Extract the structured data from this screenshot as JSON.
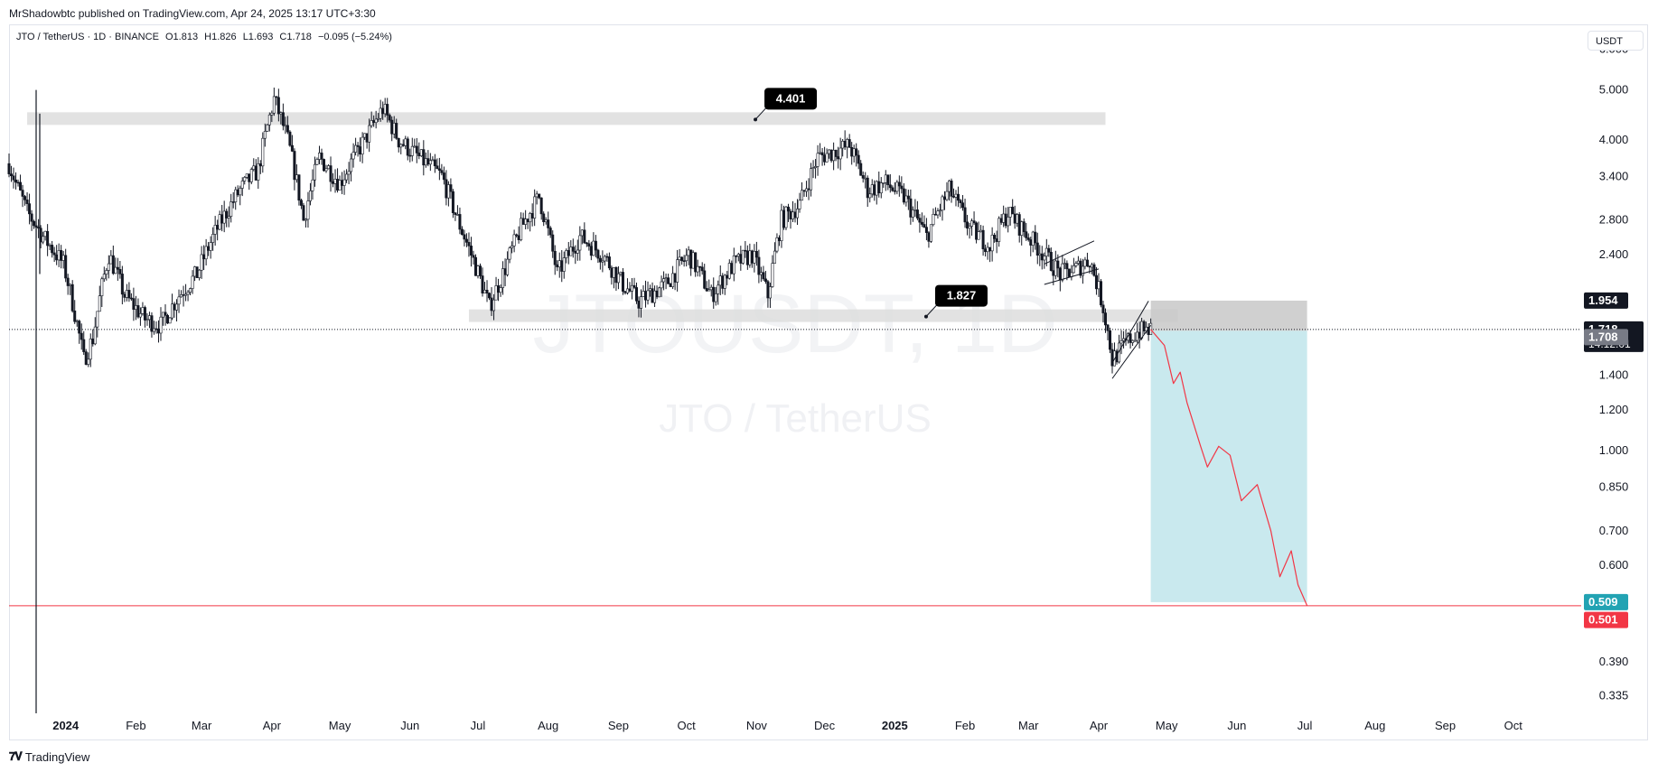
{
  "header": {
    "published": "MrShadowbtc published on TradingView.com, Apr 24, 2025 13:17 UTC+3:30"
  },
  "legend": {
    "symbol": "JTO / TetherUS · 1D · BINANCE",
    "open": "O1.813",
    "high": "H1.826",
    "low": "L1.693",
    "close": "C1.718",
    "change": "−0.095 (−5.24%)"
  },
  "currency": "USDT",
  "watermark": {
    "line1": "JTOUSDT, 1D",
    "line2": "JTO / TetherUS"
  },
  "footer": {
    "brand": "TradingView"
  },
  "colors": {
    "up_down": "#131722",
    "projection": "#f23645",
    "target_box": "#c9e9ee",
    "zone": "#dddddd",
    "last_price": "#131722",
    "teal": "#089981",
    "red": "#f23645"
  },
  "chart_data": {
    "type": "candlestick",
    "y_scale": "log",
    "ylim": [
      0.31,
      6.7
    ],
    "x_range": [
      "2023-12-07",
      "2025-10-31"
    ],
    "y_ticks": [
      6.0,
      5.0,
      4.0,
      3.4,
      2.8,
      2.4,
      1.4,
      1.2,
      1.0,
      0.85,
      0.7,
      0.6,
      0.39,
      0.335
    ],
    "y_tick_labels": [
      "6.000",
      "5.000",
      "4.000",
      "3.400",
      "2.800",
      "2.400",
      "1.400",
      "1.200",
      "1.000",
      "0.850",
      "0.700",
      "0.600",
      "0.390",
      "0.335"
    ],
    "x_ticks": [
      {
        "date": "2024-01-01",
        "label": "2024",
        "bold": true
      },
      {
        "date": "2024-02-01",
        "label": "Feb"
      },
      {
        "date": "2024-03-01",
        "label": "Mar"
      },
      {
        "date": "2024-04-01",
        "label": "Apr"
      },
      {
        "date": "2024-05-01",
        "label": "May"
      },
      {
        "date": "2024-06-01",
        "label": "Jun"
      },
      {
        "date": "2024-07-01",
        "label": "Jul"
      },
      {
        "date": "2024-08-01",
        "label": "Aug"
      },
      {
        "date": "2024-09-01",
        "label": "Sep"
      },
      {
        "date": "2024-10-01",
        "label": "Oct"
      },
      {
        "date": "2024-11-01",
        "label": "Nov"
      },
      {
        "date": "2024-12-01",
        "label": "Dec"
      },
      {
        "date": "2025-01-01",
        "label": "2025",
        "bold": true
      },
      {
        "date": "2025-02-01",
        "label": "Feb"
      },
      {
        "date": "2025-03-01",
        "label": "Mar"
      },
      {
        "date": "2025-04-01",
        "label": "Apr"
      },
      {
        "date": "2025-05-01",
        "label": "May"
      },
      {
        "date": "2025-06-01",
        "label": "Jun"
      },
      {
        "date": "2025-07-01",
        "label": "Jul"
      },
      {
        "date": "2025-08-01",
        "label": "Aug"
      },
      {
        "date": "2025-09-01",
        "label": "Sep"
      },
      {
        "date": "2025-10-01",
        "label": "Oct"
      }
    ],
    "price_path": [
      [
        "2023-12-07",
        3.6
      ],
      [
        "2023-12-10",
        3.3
      ],
      [
        "2023-12-15",
        2.9
      ],
      [
        "2023-12-22",
        2.6
      ],
      [
        "2023-12-31",
        2.3
      ],
      [
        "2024-01-05",
        1.85
      ],
      [
        "2024-01-09",
        1.5
      ],
      [
        "2024-01-13",
        1.65
      ],
      [
        "2024-01-20",
        2.4
      ],
      [
        "2024-01-27",
        2.0
      ],
      [
        "2024-02-05",
        1.8
      ],
      [
        "2024-02-12",
        1.75
      ],
      [
        "2024-02-20",
        2.0
      ],
      [
        "2024-02-28",
        2.2
      ],
      [
        "2024-03-08",
        2.7
      ],
      [
        "2024-03-18",
        3.2
      ],
      [
        "2024-03-26",
        3.5
      ],
      [
        "2024-04-02",
        4.8
      ],
      [
        "2024-04-08",
        4.0
      ],
      [
        "2024-04-15",
        2.8
      ],
      [
        "2024-04-22",
        3.7
      ],
      [
        "2024-05-01",
        3.3
      ],
      [
        "2024-05-12",
        4.0
      ],
      [
        "2024-05-20",
        4.6
      ],
      [
        "2024-05-27",
        4.0
      ],
      [
        "2024-06-05",
        3.7
      ],
      [
        "2024-06-15",
        3.4
      ],
      [
        "2024-06-22",
        2.8
      ],
      [
        "2024-06-28",
        2.4
      ],
      [
        "2024-07-06",
        1.9
      ],
      [
        "2024-07-12",
        2.2
      ],
      [
        "2024-07-20",
        2.7
      ],
      [
        "2024-07-28",
        3.1
      ],
      [
        "2024-08-05",
        2.2
      ],
      [
        "2024-08-15",
        2.6
      ],
      [
        "2024-08-25",
        2.4
      ],
      [
        "2024-09-03",
        2.1
      ],
      [
        "2024-09-10",
        1.95
      ],
      [
        "2024-09-22",
        2.1
      ],
      [
        "2024-10-02",
        2.4
      ],
      [
        "2024-10-12",
        2.0
      ],
      [
        "2024-10-22",
        2.3
      ],
      [
        "2024-10-30",
        2.4
      ],
      [
        "2024-11-06",
        2.0
      ],
      [
        "2024-11-12",
        2.8
      ],
      [
        "2024-11-20",
        3.0
      ],
      [
        "2024-11-28",
        3.7
      ],
      [
        "2024-12-05",
        3.8
      ],
      [
        "2024-12-12",
        3.9
      ],
      [
        "2024-12-20",
        3.2
      ],
      [
        "2024-12-28",
        3.3
      ],
      [
        "2025-01-05",
        3.1
      ],
      [
        "2025-01-15",
        2.6
      ],
      [
        "2025-01-25",
        3.2
      ],
      [
        "2025-02-03",
        2.7
      ],
      [
        "2025-02-12",
        2.5
      ],
      [
        "2025-02-20",
        2.9
      ],
      [
        "2025-03-01",
        2.6
      ],
      [
        "2025-03-08",
        2.4
      ],
      [
        "2025-03-15",
        2.2
      ],
      [
        "2025-03-22",
        2.25
      ],
      [
        "2025-03-28",
        2.35
      ],
      [
        "2025-04-03",
        1.9
      ],
      [
        "2025-04-07",
        1.5
      ],
      [
        "2025-04-12",
        1.6
      ],
      [
        "2025-04-18",
        1.7
      ],
      [
        "2025-04-24",
        1.718
      ]
    ],
    "key_levels": [
      {
        "label": "4.401",
        "price": 4.401,
        "from": "2023-12-15",
        "to": "2025-04-04"
      },
      {
        "label": "1.827",
        "price": 1.827,
        "from": "2024-06-27",
        "to": "2025-05-06"
      }
    ],
    "short_position": {
      "entry": 1.708,
      "stop": 1.954,
      "target": 0.509,
      "from": "2025-04-24",
      "to": "2025-07-02"
    },
    "projection_path": [
      [
        "2025-04-24",
        1.718
      ],
      [
        "2025-04-30",
        1.6
      ],
      [
        "2025-05-04",
        1.35
      ],
      [
        "2025-05-07",
        1.42
      ],
      [
        "2025-05-10",
        1.24
      ],
      [
        "2025-05-16",
        1.02
      ],
      [
        "2025-05-19",
        0.93
      ],
      [
        "2025-05-24",
        1.02
      ],
      [
        "2025-05-29",
        0.98
      ],
      [
        "2025-06-03",
        0.8
      ],
      [
        "2025-06-10",
        0.86
      ],
      [
        "2025-06-16",
        0.7
      ],
      [
        "2025-06-20",
        0.57
      ],
      [
        "2025-06-25",
        0.64
      ],
      [
        "2025-06-28",
        0.55
      ],
      [
        "2025-07-02",
        0.501
      ]
    ],
    "patterns": [
      {
        "name": "flag-1",
        "lines": [
          [
            [
              "2025-03-08",
              2.3
            ],
            [
              "2025-03-30",
              2.55
            ]
          ],
          [
            [
              "2025-03-08",
              2.1
            ],
            [
              "2025-04-01",
              2.25
            ]
          ]
        ]
      },
      {
        "name": "wedge-2",
        "lines": [
          [
            [
              "2025-04-07",
              1.48
            ],
            [
              "2025-04-23",
              1.95
            ]
          ],
          [
            [
              "2025-04-07",
              1.38
            ],
            [
              "2025-04-24",
              1.75
            ]
          ]
        ]
      }
    ],
    "price_labels": [
      {
        "value": "1.954",
        "price": 1.954,
        "bg": "#131722",
        "color": "#ffffff"
      },
      {
        "value": "1.718",
        "price": 1.718,
        "bg": "#131722",
        "color": "#ffffff",
        "sub": "14:12:01"
      },
      {
        "value": "1.708",
        "price": 1.66,
        "bg": "#787b86",
        "color": "#ffffff"
      },
      {
        "value": "0.509",
        "price": 0.509,
        "bg": "#22a3b3",
        "color": "#ffffff"
      },
      {
        "value": "0.501",
        "price": 0.47,
        "bg": "#f23645",
        "color": "#ffffff"
      }
    ],
    "stop_line": 0.501,
    "last_price": 1.718
  }
}
